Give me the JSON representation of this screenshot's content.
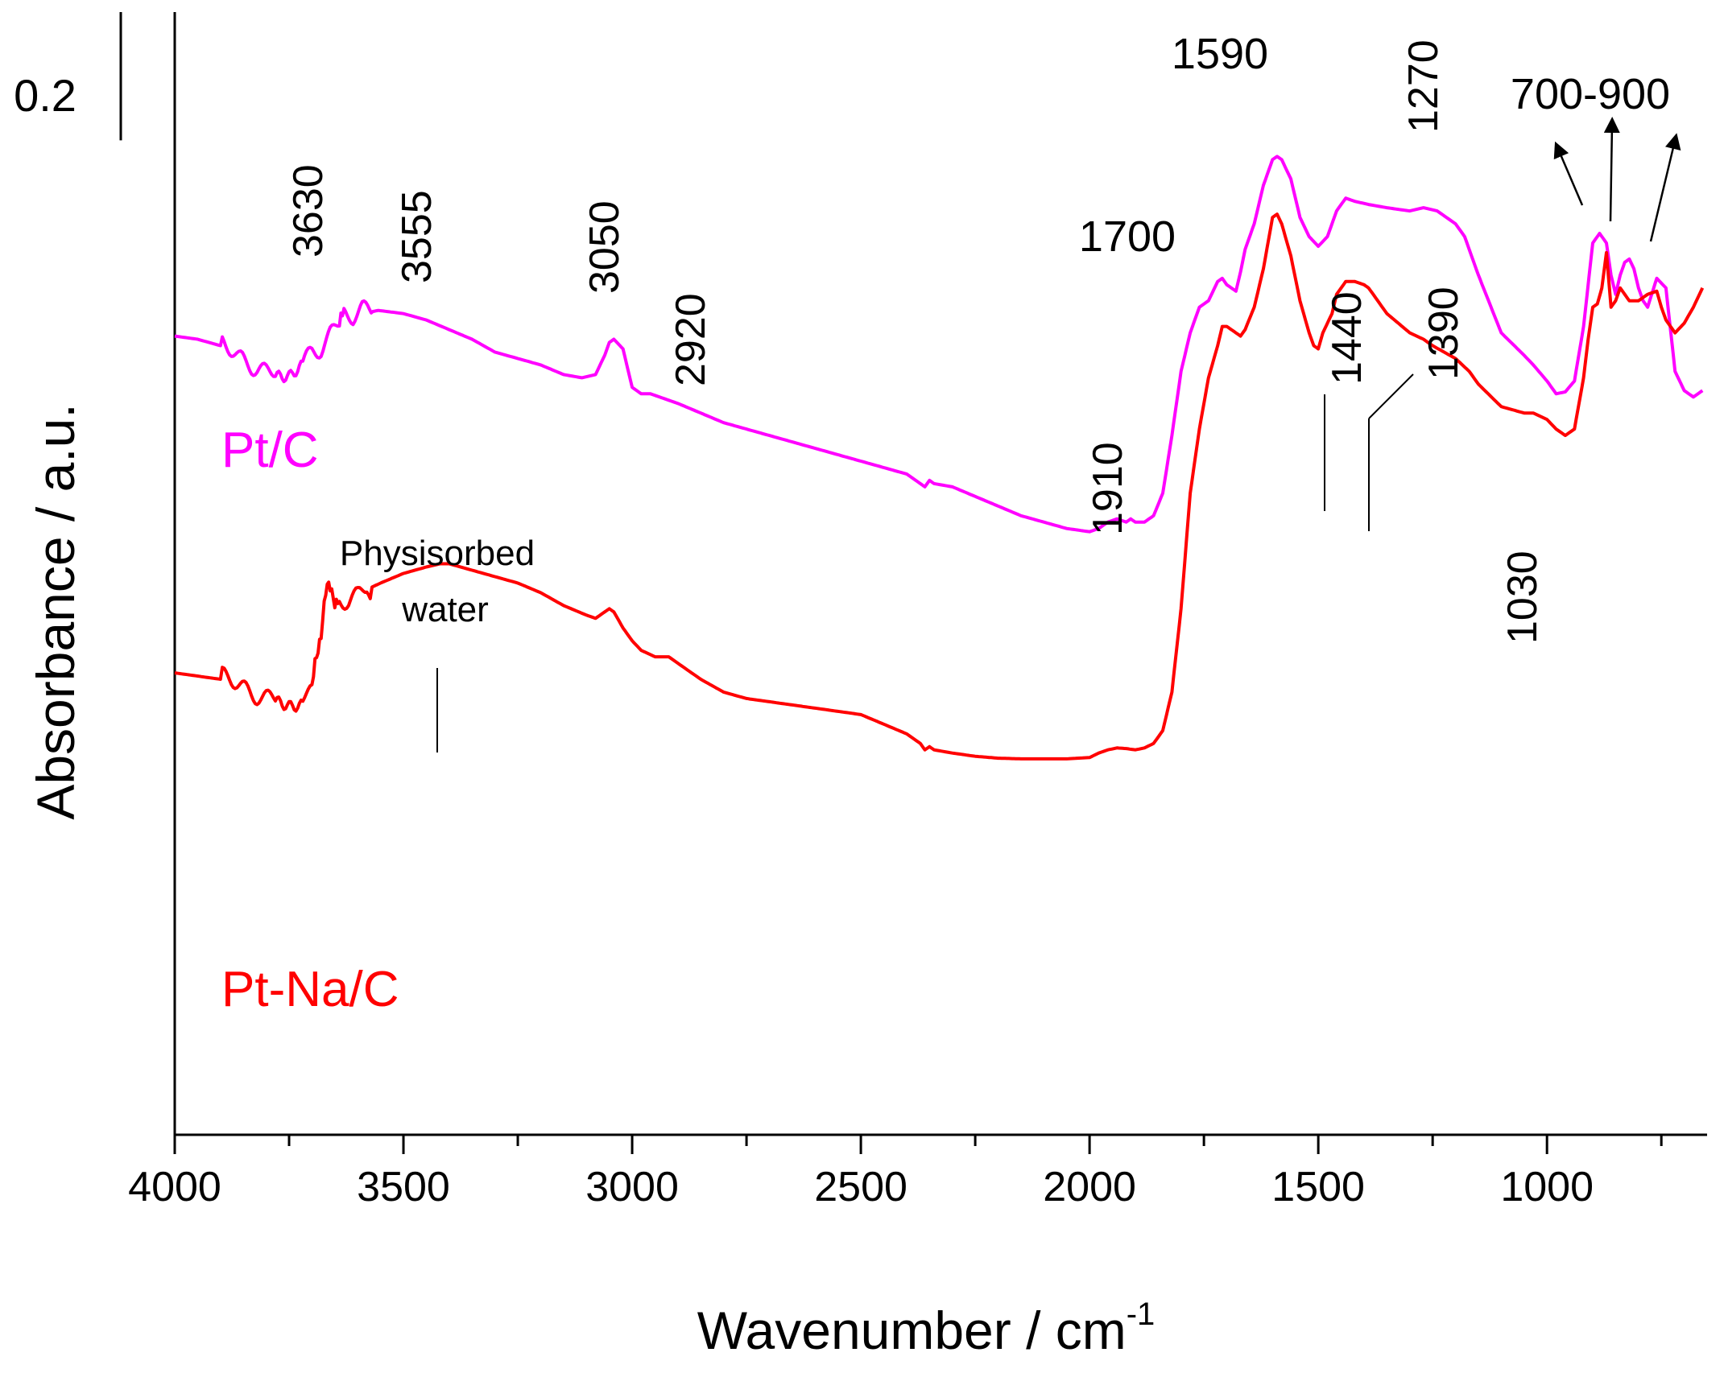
{
  "chart_data": {
    "type": "line",
    "title": "",
    "xlabel": "Wavenumber / cm",
    "xlabel_superscript": "-1",
    "ylabel": "Absorbance / a.u.",
    "x_reversed": true,
    "xlim": [
      4000,
      650
    ],
    "ylim": [
      0,
      1.75
    ],
    "y_ticks_shown": false,
    "x_major_ticks": [
      4000,
      3500,
      3000,
      2500,
      2000,
      1500,
      1000
    ],
    "x_minor_ticks": [
      3750,
      3250,
      2750,
      2250,
      1750,
      1250,
      750
    ],
    "x_tick_labels": [
      "4000",
      "3500",
      "3000",
      "2500",
      "2000",
      "1500",
      "1000"
    ],
    "scale_bar": {
      "label": "0.2",
      "length": 0.2
    },
    "series": [
      {
        "name": "Pt/C",
        "color": "#ff00ff",
        "label": "Pt/C",
        "x": [
          4000,
          3950,
          3900,
          3860,
          3820,
          3780,
          3750,
          3720,
          3700,
          3680,
          3660,
          3640,
          3630,
          3610,
          3590,
          3555,
          3500,
          3450,
          3400,
          3350,
          3300,
          3250,
          3200,
          3150,
          3110,
          3080,
          3060,
          3050,
          3040,
          3020,
          3000,
          2980,
          2960,
          2940,
          2920,
          2900,
          2850,
          2800,
          2750,
          2700,
          2650,
          2600,
          2550,
          2500,
          2450,
          2400,
          2370,
          2360,
          2350,
          2340,
          2300,
          2250,
          2200,
          2150,
          2100,
          2050,
          2000,
          1980,
          1960,
          1940,
          1920,
          1910,
          1900,
          1880,
          1860,
          1840,
          1820,
          1800,
          1780,
          1760,
          1740,
          1720,
          1710,
          1700,
          1690,
          1680,
          1670,
          1660,
          1640,
          1620,
          1600,
          1590,
          1580,
          1560,
          1540,
          1520,
          1500,
          1480,
          1460,
          1440,
          1420,
          1390,
          1350,
          1300,
          1270,
          1240,
          1200,
          1180,
          1150,
          1100,
          1050,
          1030,
          1000,
          980,
          960,
          940,
          920,
          900,
          885,
          870,
          860,
          850,
          840,
          830,
          820,
          810,
          800,
          790,
          780,
          760,
          740,
          720,
          700,
          680,
          660
        ],
        "y": [
          1.245,
          1.24,
          1.23,
          1.21,
          1.2,
          1.195,
          1.19,
          1.2,
          1.22,
          1.23,
          1.255,
          1.275,
          1.28,
          1.27,
          1.28,
          1.285,
          1.28,
          1.27,
          1.255,
          1.24,
          1.22,
          1.21,
          1.2,
          1.185,
          1.18,
          1.185,
          1.215,
          1.235,
          1.24,
          1.225,
          1.165,
          1.155,
          1.155,
          1.15,
          1.145,
          1.14,
          1.125,
          1.11,
          1.1,
          1.09,
          1.08,
          1.07,
          1.06,
          1.05,
          1.04,
          1.03,
          1.015,
          1.01,
          1.02,
          1.015,
          1.01,
          0.995,
          0.98,
          0.965,
          0.955,
          0.945,
          0.94,
          0.945,
          0.955,
          0.96,
          0.955,
          0.96,
          0.955,
          0.955,
          0.965,
          1.0,
          1.09,
          1.19,
          1.25,
          1.29,
          1.3,
          1.33,
          1.335,
          1.325,
          1.32,
          1.315,
          1.345,
          1.38,
          1.42,
          1.48,
          1.52,
          1.525,
          1.52,
          1.49,
          1.43,
          1.4,
          1.385,
          1.4,
          1.44,
          1.46,
          1.455,
          1.45,
          1.445,
          1.44,
          1.445,
          1.44,
          1.42,
          1.4,
          1.34,
          1.25,
          1.215,
          1.2,
          1.175,
          1.155,
          1.158,
          1.175,
          1.26,
          1.39,
          1.405,
          1.39,
          1.34,
          1.31,
          1.34,
          1.36,
          1.365,
          1.35,
          1.32,
          1.3,
          1.29,
          1.335,
          1.32,
          1.19,
          1.16,
          1.15,
          1.16
        ]
      },
      {
        "name": "Pt-Na/C",
        "color": "#ff0000",
        "label": "Pt-Na/C",
        "x": [
          4000,
          3950,
          3900,
          3860,
          3820,
          3780,
          3750,
          3720,
          3700,
          3690,
          3680,
          3670,
          3660,
          3650,
          3640,
          3620,
          3600,
          3580,
          3550,
          3500,
          3450,
          3420,
          3400,
          3350,
          3300,
          3250,
          3200,
          3150,
          3100,
          3080,
          3060,
          3050,
          3040,
          3020,
          3000,
          2980,
          2950,
          2920,
          2900,
          2880,
          2850,
          2800,
          2750,
          2700,
          2650,
          2600,
          2550,
          2500,
          2450,
          2400,
          2370,
          2360,
          2350,
          2340,
          2300,
          2250,
          2200,
          2150,
          2100,
          2050,
          2000,
          1980,
          1960,
          1940,
          1920,
          1900,
          1880,
          1860,
          1840,
          1820,
          1800,
          1780,
          1760,
          1740,
          1720,
          1710,
          1700,
          1690,
          1680,
          1670,
          1660,
          1640,
          1620,
          1600,
          1590,
          1580,
          1560,
          1540,
          1520,
          1510,
          1500,
          1490,
          1470,
          1460,
          1440,
          1420,
          1400,
          1390,
          1370,
          1350,
          1300,
          1270,
          1250,
          1200,
          1170,
          1150,
          1100,
          1050,
          1030,
          1000,
          980,
          960,
          940,
          920,
          910,
          900,
          890,
          880,
          870,
          860,
          850,
          840,
          830,
          820,
          800,
          780,
          760,
          750,
          740,
          720,
          700,
          680,
          660
        ],
        "y": [
          0.72,
          0.715,
          0.71,
          0.7,
          0.69,
          0.685,
          0.68,
          0.68,
          0.69,
          0.75,
          0.79,
          0.84,
          0.85,
          0.84,
          0.835,
          0.83,
          0.835,
          0.85,
          0.86,
          0.875,
          0.885,
          0.89,
          0.89,
          0.88,
          0.87,
          0.86,
          0.845,
          0.825,
          0.81,
          0.805,
          0.815,
          0.82,
          0.815,
          0.79,
          0.77,
          0.755,
          0.745,
          0.745,
          0.735,
          0.725,
          0.71,
          0.69,
          0.68,
          0.675,
          0.67,
          0.665,
          0.66,
          0.655,
          0.64,
          0.625,
          0.61,
          0.6,
          0.605,
          0.6,
          0.595,
          0.59,
          0.587,
          0.586,
          0.586,
          0.586,
          0.588,
          0.595,
          0.6,
          0.603,
          0.602,
          0.6,
          0.603,
          0.61,
          0.63,
          0.69,
          0.82,
          1.0,
          1.1,
          1.18,
          1.23,
          1.26,
          1.26,
          1.255,
          1.25,
          1.245,
          1.255,
          1.29,
          1.35,
          1.43,
          1.435,
          1.42,
          1.37,
          1.3,
          1.25,
          1.23,
          1.225,
          1.25,
          1.28,
          1.31,
          1.33,
          1.33,
          1.325,
          1.32,
          1.3,
          1.28,
          1.25,
          1.24,
          1.23,
          1.21,
          1.19,
          1.17,
          1.135,
          1.125,
          1.125,
          1.115,
          1.1,
          1.09,
          1.1,
          1.18,
          1.24,
          1.29,
          1.295,
          1.32,
          1.375,
          1.29,
          1.3,
          1.32,
          1.31,
          1.3,
          1.3,
          1.31,
          1.315,
          1.29,
          1.27,
          1.25,
          1.265,
          1.29,
          1.32
        ]
      }
    ],
    "annotations": [
      {
        "text": "3630",
        "rotated": true
      },
      {
        "text": "3555",
        "rotated": true
      },
      {
        "text": "3050",
        "rotated": true
      },
      {
        "text": "2920",
        "rotated": true
      },
      {
        "text": "1700",
        "rotated": false
      },
      {
        "text": "1590",
        "rotated": false
      },
      {
        "text": "1270",
        "rotated": true
      },
      {
        "text": "700-900",
        "rotated": false
      },
      {
        "text": "1910",
        "rotated": true
      },
      {
        "text": "1440",
        "rotated": true
      },
      {
        "text": "1390",
        "rotated": true
      },
      {
        "text": "1030",
        "rotated": true
      },
      {
        "text": "Physisorbed",
        "rotated": false
      },
      {
        "text": "water",
        "rotated": false
      }
    ]
  }
}
